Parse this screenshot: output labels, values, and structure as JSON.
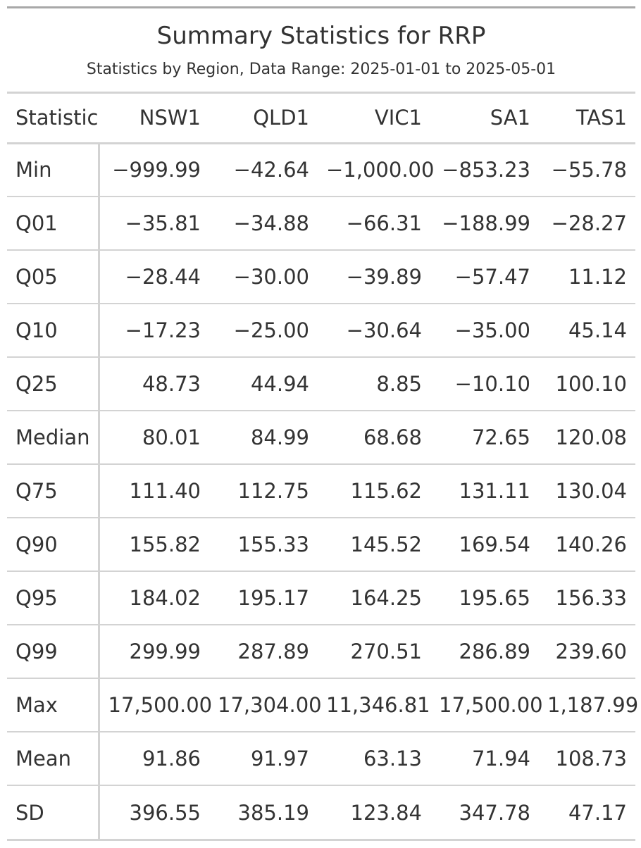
{
  "title": "Summary Statistics for RRP",
  "subtitle": "Statistics by Region, Data Range: 2025-01-01 to 2025-05-01",
  "columns": [
    "Statistic",
    "NSW1",
    "QLD1",
    "VIC1",
    "SA1",
    "TAS1"
  ],
  "rows": [
    {
      "label": "Min",
      "values": [
        "−999.99",
        "−42.64",
        "−1,000.00",
        "−853.23",
        "−55.78"
      ]
    },
    {
      "label": "Q01",
      "values": [
        "−35.81",
        "−34.88",
        "−66.31",
        "−188.99",
        "−28.27"
      ]
    },
    {
      "label": "Q05",
      "values": [
        "−28.44",
        "−30.00",
        "−39.89",
        "−57.47",
        "11.12"
      ]
    },
    {
      "label": "Q10",
      "values": [
        "−17.23",
        "−25.00",
        "−30.64",
        "−35.00",
        "45.14"
      ]
    },
    {
      "label": "Q25",
      "values": [
        "48.73",
        "44.94",
        "8.85",
        "−10.10",
        "100.10"
      ]
    },
    {
      "label": "Median",
      "values": [
        "80.01",
        "84.99",
        "68.68",
        "72.65",
        "120.08"
      ]
    },
    {
      "label": "Q75",
      "values": [
        "111.40",
        "112.75",
        "115.62",
        "131.11",
        "130.04"
      ]
    },
    {
      "label": "Q90",
      "values": [
        "155.82",
        "155.33",
        "145.52",
        "169.54",
        "140.26"
      ]
    },
    {
      "label": "Q95",
      "values": [
        "184.02",
        "195.17",
        "164.25",
        "195.65",
        "156.33"
      ]
    },
    {
      "label": "Q99",
      "values": [
        "299.99",
        "287.89",
        "270.51",
        "286.89",
        "239.60"
      ]
    },
    {
      "label": "Max",
      "values": [
        "17,500.00",
        "17,304.00",
        "11,346.81",
        "17,500.00",
        "1,187.99"
      ]
    },
    {
      "label": "Mean",
      "values": [
        "91.86",
        "91.97",
        "63.13",
        "71.94",
        "108.73"
      ]
    },
    {
      "label": "SD",
      "values": [
        "396.55",
        "385.19",
        "123.84",
        "347.78",
        "47.17"
      ]
    }
  ]
}
